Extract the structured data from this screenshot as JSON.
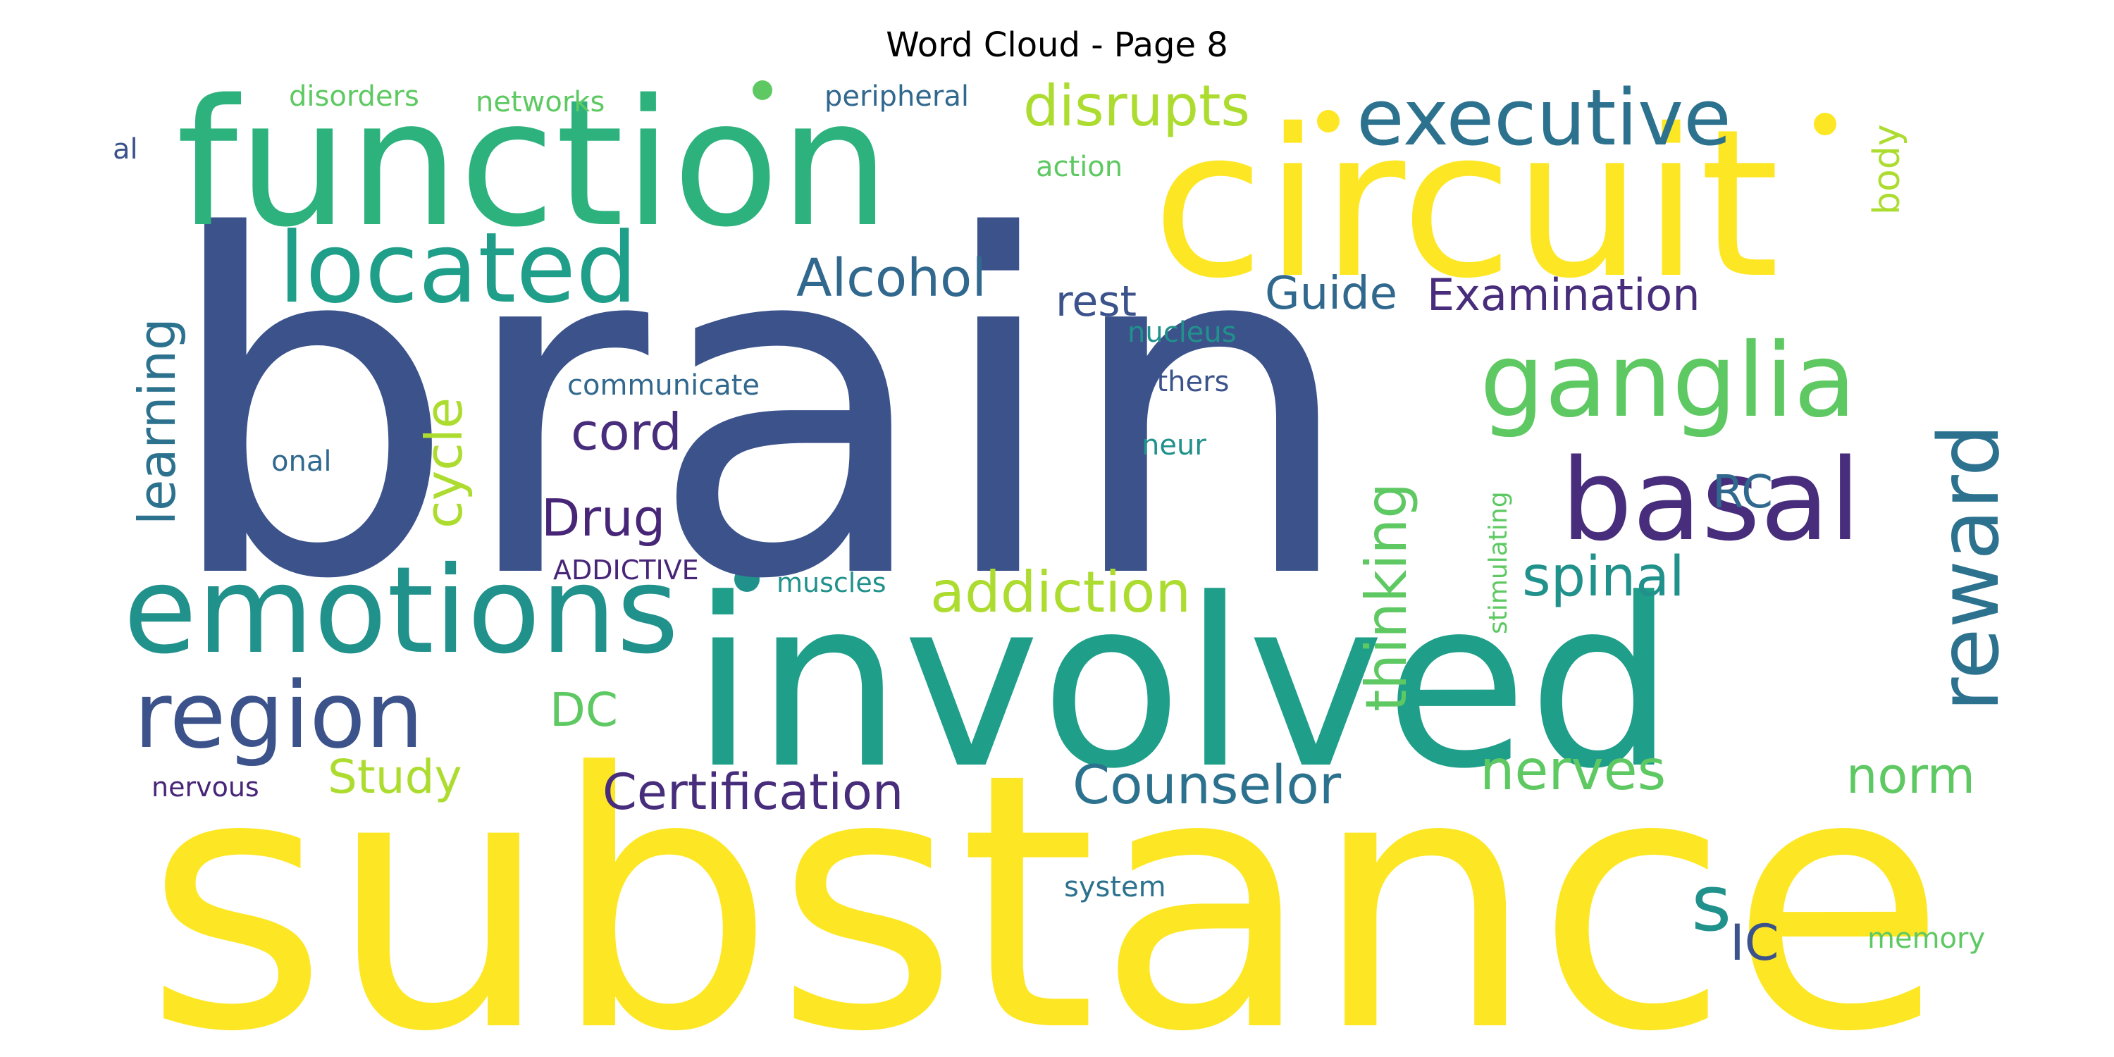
{
  "title": "Word Cloud - Page 8",
  "palette": {
    "dark_blue": "#3b528b",
    "dark_purple": "#472d7b",
    "purple": "#482677",
    "teal": "#2c728e",
    "blue_teal": "#31688e",
    "cyan": "#21918c",
    "green_teal": "#1f9e89",
    "green": "#2db27d",
    "light_green": "#5ec962",
    "yellow_green": "#addc30",
    "yellow": "#fde725"
  },
  "words": [
    {
      "text": "brain",
      "color": "#3b528b"
    },
    {
      "text": "substance",
      "color": "#fde725"
    },
    {
      "text": "involved",
      "color": "#1f9e89"
    },
    {
      "text": "function",
      "color": "#2db27d"
    },
    {
      "text": "circuit",
      "color": "#fde725"
    },
    {
      "text": "emotions",
      "color": "#21918c"
    },
    {
      "text": "basal",
      "color": "#472d7b"
    },
    {
      "text": "reward",
      "color": "#2c728e"
    },
    {
      "text": "ganglia",
      "color": "#5ec962"
    },
    {
      "text": "region",
      "color": "#3b528b"
    },
    {
      "text": "located",
      "color": "#1f9e89"
    },
    {
      "text": "executive",
      "color": "#2c728e"
    },
    {
      "text": "disrupts",
      "color": "#addc30"
    },
    {
      "text": "addiction",
      "color": "#addc30"
    },
    {
      "text": "Counselor",
      "color": "#2c728e"
    },
    {
      "text": "Certification",
      "color": "#472d7b"
    },
    {
      "text": "Alcohol",
      "color": "#31688e"
    },
    {
      "text": "thinking",
      "color": "#5ec962"
    },
    {
      "text": "spinal",
      "color": "#21918c"
    },
    {
      "text": "nerves",
      "color": "#5ec962"
    },
    {
      "text": "learning",
      "color": "#2c728e"
    },
    {
      "text": "Examination",
      "color": "#472d7b"
    },
    {
      "text": "cycle",
      "color": "#addc30"
    },
    {
      "text": "Drug",
      "color": "#482677"
    },
    {
      "text": "cord",
      "color": "#472d7b"
    },
    {
      "text": "Guide",
      "color": "#31688e"
    },
    {
      "text": "rest",
      "color": "#3b528b"
    },
    {
      "text": "norm",
      "color": "#5ec962"
    },
    {
      "text": "Study",
      "color": "#addc30"
    },
    {
      "text": "DC",
      "color": "#5ec962"
    },
    {
      "text": "RC",
      "color": "#31688e"
    },
    {
      "text": "IC",
      "color": "#3b528b"
    },
    {
      "text": "s",
      "color": "#21918c"
    },
    {
      "text": "body",
      "color": "#addc30"
    },
    {
      "text": "stimulating",
      "color": "#5ec962"
    },
    {
      "text": "system",
      "color": "#2c728e"
    },
    {
      "text": "memory",
      "color": "#5ec962"
    },
    {
      "text": "communicate",
      "color": "#31688e"
    },
    {
      "text": "muscles",
      "color": "#21918c"
    },
    {
      "text": "ADDICTIVE",
      "color": "#482677"
    },
    {
      "text": "nervous",
      "color": "#482677"
    },
    {
      "text": "peripheral",
      "color": "#31688e"
    },
    {
      "text": "networks",
      "color": "#5ec962"
    },
    {
      "text": "disorders",
      "color": "#5ec962"
    },
    {
      "text": "action",
      "color": "#5ec962"
    },
    {
      "text": "nucleus",
      "color": "#21918c"
    },
    {
      "text": "Others",
      "color": "#3b528b"
    },
    {
      "text": "neur",
      "color": "#21918c"
    },
    {
      "text": "onal",
      "color": "#31688e"
    },
    {
      "text": "al",
      "color": "#3b528b"
    }
  ]
}
